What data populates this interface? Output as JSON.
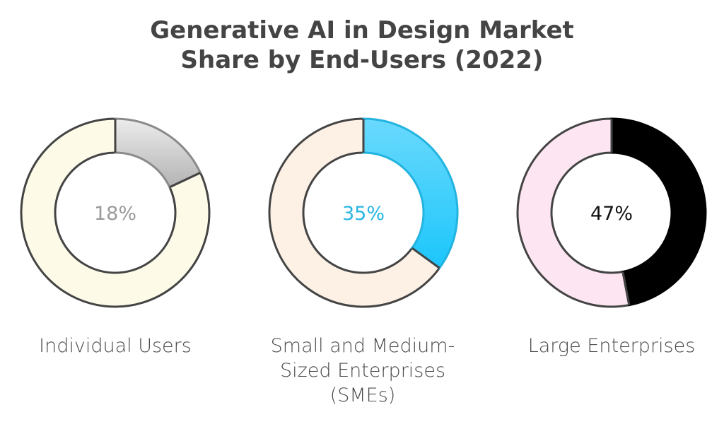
{
  "chart_data": {
    "type": "pie",
    "title": "Generative AI in Design Market Share by End-Users (2022)",
    "title_lines": [
      "Generative AI in Design Market",
      "Share by End-Users (2022)"
    ],
    "donuts": [
      {
        "name": "Individual Users",
        "label_lines": [
          "Individual Users"
        ],
        "value": 18,
        "value_label": "18%",
        "highlight_color": "#c9c9c9",
        "highlight_color_top": "#ececec",
        "highlight_color_bottom": "#b3b3b3",
        "rest_color": "#fdfbe8",
        "text_color": "#9a9a9a"
      },
      {
        "name": "Small and Medium-Sized Enterprises (SMEs)",
        "label_lines": [
          "Small and Medium-",
          "Sized Enterprises",
          "(SMEs)"
        ],
        "value": 35,
        "value_label": "35%",
        "highlight_color": "#3fd0fb",
        "highlight_color_top": "#6ad9fd",
        "highlight_color_bottom": "#1cc6fb",
        "rest_color": "#fdf1e6",
        "text_color": "#27b5e4"
      },
      {
        "name": "Large Enterprises",
        "label_lines": [
          "Large Enterprises"
        ],
        "value": 47,
        "value_label": "47%",
        "highlight_color": "#000000",
        "highlight_color_top": "#000000",
        "highlight_color_bottom": "#000000",
        "rest_color": "#fde6f2",
        "text_color": "#111111"
      }
    ],
    "unit": "%"
  }
}
